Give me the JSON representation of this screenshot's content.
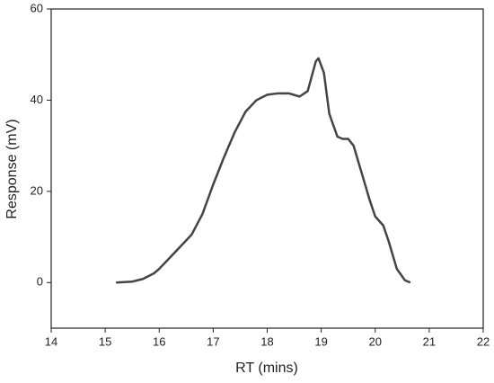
{
  "chart_data": {
    "type": "line",
    "x_label": "RT (mins)",
    "y_label": "Response (mV)",
    "x": [
      15.2,
      15.5,
      15.7,
      15.9,
      16.0,
      16.2,
      16.4,
      16.6,
      16.8,
      17.0,
      17.2,
      17.4,
      17.6,
      17.8,
      18.0,
      18.2,
      18.4,
      18.6,
      18.75,
      18.9,
      18.95,
      19.05,
      19.15,
      19.3,
      19.4,
      19.5,
      19.6,
      19.75,
      19.9,
      20.0,
      20.15,
      20.25,
      20.4,
      20.55,
      20.65
    ],
    "series": [
      {
        "color": "#444444",
        "values": [
          0,
          0.2,
          0.8,
          2,
          3,
          5.5,
          8,
          10.5,
          15,
          21.5,
          27.5,
          33,
          37.5,
          40,
          41.2,
          41.5,
          41.5,
          40.8,
          42,
          48.5,
          49.2,
          46,
          37,
          32,
          31.5,
          31.5,
          30,
          24,
          18,
          14.5,
          12.5,
          9,
          3,
          0.5,
          0
        ]
      }
    ],
    "xlim": [
      14,
      22
    ],
    "xticks": [
      14,
      15,
      16,
      17,
      18,
      19,
      20,
      21,
      22
    ],
    "ylim": [
      -10,
      60
    ],
    "yticks": [
      0,
      20,
      40,
      60
    ]
  }
}
